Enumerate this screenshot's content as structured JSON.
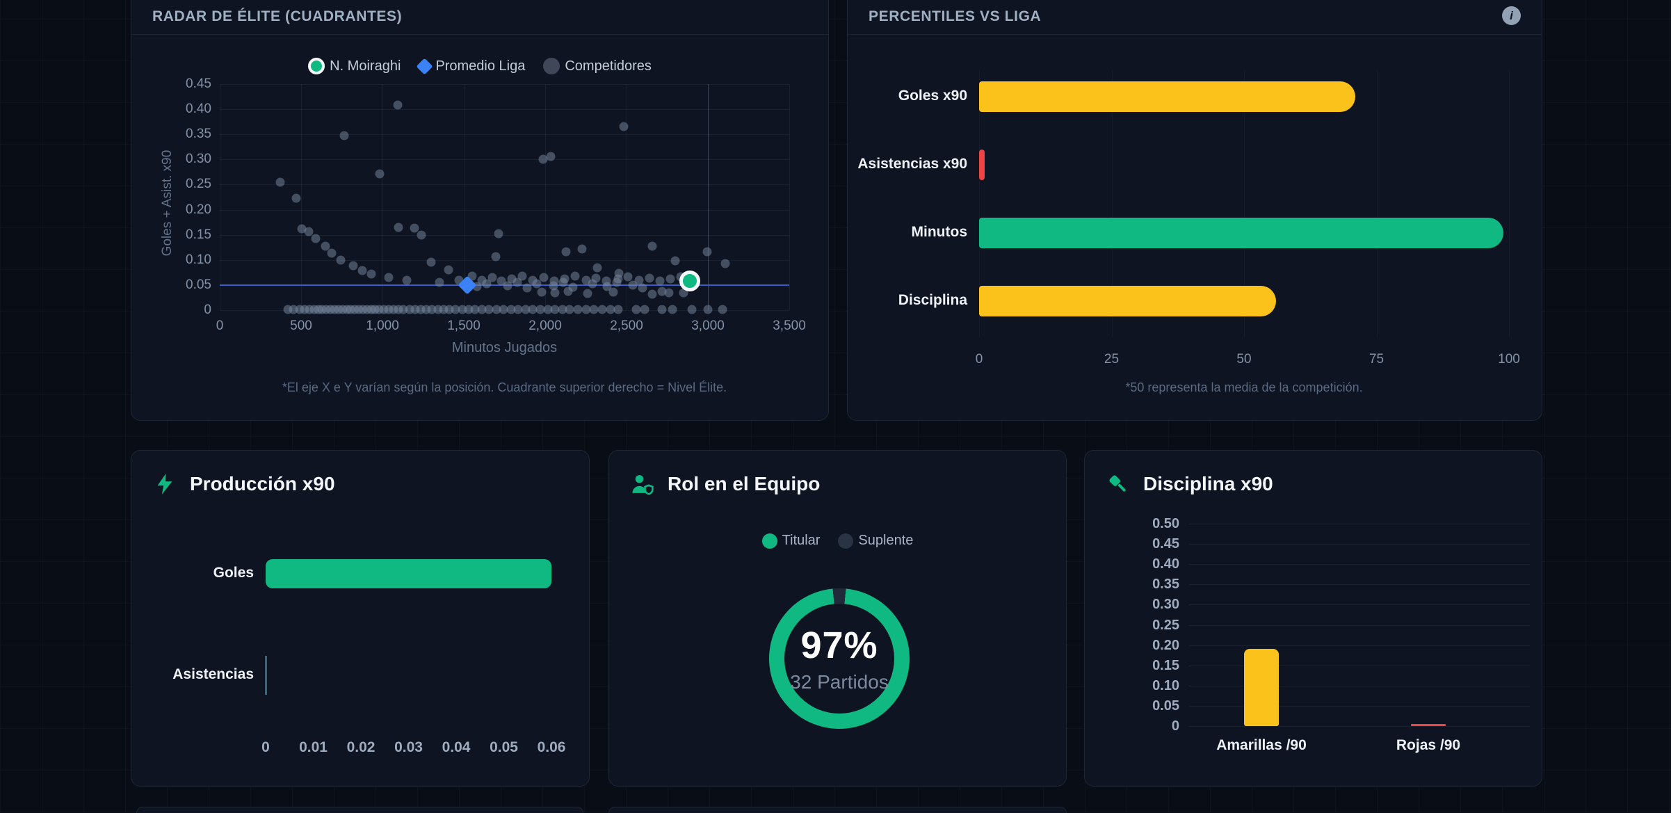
{
  "colors": {
    "page_bg": "#090d15",
    "panel_bg": "#0e1421",
    "panel_border": "#1d2737",
    "green": "#10b981",
    "yellow": "#fcc21c",
    "red": "#ef4444",
    "blue": "#3b82f6",
    "ref_line_blue": "#3a5ccc",
    "competitor_dot": "#7a89a2",
    "donut_track": "#212a3a"
  },
  "icons": {
    "info": "i",
    "bolt": "bolt-icon",
    "users": "users-shield-icon",
    "gavel": "gavel-icon"
  },
  "panels": {
    "radar": {
      "title": "RADAR DE ÉLITE (CUADRANTES)",
      "footnote": "*El eje X e Y varían según la posición. Cuadrante superior derecho = Nivel Élite."
    },
    "percentiles": {
      "title": "PERCENTILES VS LIGA",
      "footnote": "*50 representa la media de la competición."
    },
    "produccion": {
      "title": "Producción x90"
    },
    "rol": {
      "title": "Rol en el Equipo"
    },
    "disciplina": {
      "title": "Disciplina x90"
    }
  },
  "chart_data": [
    {
      "id": "radar",
      "type": "scatter",
      "title": "RADAR DE ÉLITE (CUADRANTES)",
      "xlabel": "Minutos Jugados",
      "ylabel": "Goles + Asist. x90",
      "xlim": [
        0,
        3500
      ],
      "ylim": [
        0,
        0.45
      ],
      "xticks": [
        0,
        500,
        1000,
        1500,
        2000,
        2500,
        3000,
        3500
      ],
      "xtick_labels": [
        "0",
        "500",
        "1,000",
        "1,500",
        "2,000",
        "2,500",
        "3,000",
        "3,500"
      ],
      "yticks": [
        0,
        0.05,
        0.1,
        0.15,
        0.2,
        0.25,
        0.3,
        0.35,
        0.4,
        0.45
      ],
      "ytick_labels": [
        "0",
        "0.05",
        "0.10",
        "0.15",
        "0.20",
        "0.25",
        "0.30",
        "0.35",
        "0.40",
        "0.45"
      ],
      "grid": true,
      "ref_lines": {
        "horizontal_y": 0.05,
        "vertical_x": 3000
      },
      "legend_position": "top",
      "series": [
        {
          "name": "N. Moiraghi",
          "marker": "circle-ring",
          "color": "#10b981",
          "points": [
            [
              2890,
              0.058
            ]
          ]
        },
        {
          "name": "Promedio Liga",
          "marker": "diamond",
          "color": "#3b82f6",
          "points": [
            [
              1520,
              0.05
            ]
          ]
        },
        {
          "name": "Competidores",
          "marker": "circle",
          "color": "#7a89a2",
          "points": [
            [
              370,
              0.255
            ],
            [
              470,
              0.223
            ],
            [
              505,
              0.162
            ],
            [
              548,
              0.157
            ],
            [
              590,
              0.142
            ],
            [
              650,
              0.128
            ],
            [
              688,
              0.113
            ],
            [
              745,
              0.1
            ],
            [
              767,
              0.348
            ],
            [
              820,
              0.089
            ],
            [
              878,
              0.079
            ],
            [
              930,
              0.072
            ],
            [
              985,
              0.272
            ],
            [
              1040,
              0.065
            ],
            [
              1095,
              0.408
            ],
            [
              1100,
              0.165
            ],
            [
              1150,
              0.06
            ],
            [
              1198,
              0.163
            ],
            [
              1240,
              0.149
            ],
            [
              1298,
              0.096
            ],
            [
              1350,
              0.056
            ],
            [
              1405,
              0.081
            ],
            [
              1468,
              0.06
            ],
            [
              1580,
              0.047
            ],
            [
              1640,
              0.052
            ],
            [
              1697,
              0.106
            ],
            [
              1712,
              0.153
            ],
            [
              1770,
              0.048
            ],
            [
              1830,
              0.055
            ],
            [
              1890,
              0.045
            ],
            [
              1950,
              0.052
            ],
            [
              1988,
              0.301
            ],
            [
              2034,
              0.306
            ],
            [
              2050,
              0.048
            ],
            [
              2110,
              0.055
            ],
            [
              2128,
              0.117
            ],
            [
              2170,
              0.046
            ],
            [
              2228,
              0.122
            ],
            [
              2290,
              0.053
            ],
            [
              2320,
              0.085
            ],
            [
              2380,
              0.047
            ],
            [
              2440,
              0.055
            ],
            [
              2455,
              0.074
            ],
            [
              2484,
              0.365
            ],
            [
              2540,
              0.05
            ],
            [
              2600,
              0.045
            ],
            [
              2660,
              0.127
            ],
            [
              2720,
              0.038
            ],
            [
              2798,
              0.098
            ],
            [
              2850,
              0.035
            ],
            [
              2995,
              0.117
            ],
            [
              3105,
              0.093
            ],
            [
              1980,
              0.036
            ],
            [
              2060,
              0.034
            ],
            [
              2140,
              0.037
            ],
            [
              2260,
              0.033
            ],
            [
              2420,
              0.036
            ],
            [
              2660,
              0.032
            ],
            [
              2760,
              0.035
            ],
            [
              1550,
              0.068
            ],
            [
              1610,
              0.06
            ],
            [
              1675,
              0.065
            ],
            [
              1730,
              0.058
            ],
            [
              1795,
              0.062
            ],
            [
              1860,
              0.068
            ],
            [
              1925,
              0.06
            ],
            [
              1990,
              0.065
            ],
            [
              2055,
              0.058
            ],
            [
              2120,
              0.063
            ],
            [
              2185,
              0.068
            ],
            [
              2250,
              0.06
            ],
            [
              2310,
              0.064
            ],
            [
              2375,
              0.058
            ],
            [
              2450,
              0.062
            ],
            [
              2510,
              0.067
            ],
            [
              2575,
              0.06
            ],
            [
              2640,
              0.064
            ],
            [
              2705,
              0.058
            ],
            [
              2770,
              0.062
            ],
            [
              2835,
              0.066
            ],
            [
              420,
              0.002
            ],
            [
              455,
              0.002
            ],
            [
              490,
              0.002
            ],
            [
              520,
              0.002
            ],
            [
              550,
              0.002
            ],
            [
              580,
              0.002
            ],
            [
              605,
              0.002
            ],
            [
              630,
              0.002
            ],
            [
              655,
              0.002
            ],
            [
              680,
              0.002
            ],
            [
              705,
              0.002
            ],
            [
              730,
              0.002
            ],
            [
              755,
              0.002
            ],
            [
              780,
              0.002
            ],
            [
              805,
              0.002
            ],
            [
              830,
              0.002
            ],
            [
              855,
              0.002
            ],
            [
              880,
              0.002
            ],
            [
              905,
              0.002
            ],
            [
              930,
              0.002
            ],
            [
              955,
              0.002
            ],
            [
              980,
              0.002
            ],
            [
              1010,
              0.002
            ],
            [
              1040,
              0.002
            ],
            [
              1070,
              0.002
            ],
            [
              1100,
              0.002
            ],
            [
              1130,
              0.002
            ],
            [
              1165,
              0.002
            ],
            [
              1200,
              0.002
            ],
            [
              1235,
              0.002
            ],
            [
              1270,
              0.002
            ],
            [
              1305,
              0.002
            ],
            [
              1340,
              0.002
            ],
            [
              1375,
              0.002
            ],
            [
              1410,
              0.002
            ],
            [
              1450,
              0.002
            ],
            [
              1490,
              0.002
            ],
            [
              1530,
              0.002
            ],
            [
              1570,
              0.002
            ],
            [
              1610,
              0.002
            ],
            [
              1655,
              0.002
            ],
            [
              1700,
              0.002
            ],
            [
              1745,
              0.002
            ],
            [
              1790,
              0.002
            ],
            [
              1835,
              0.002
            ],
            [
              1880,
              0.002
            ],
            [
              1925,
              0.002
            ],
            [
              1970,
              0.002
            ],
            [
              2015,
              0.002
            ],
            [
              2060,
              0.002
            ],
            [
              2105,
              0.002
            ],
            [
              2150,
              0.002
            ],
            [
              2200,
              0.002
            ],
            [
              2250,
              0.002
            ],
            [
              2300,
              0.002
            ],
            [
              2350,
              0.002
            ],
            [
              2400,
              0.002
            ],
            [
              2450,
              0.002
            ],
            [
              2560,
              0.002
            ],
            [
              2610,
              0.002
            ],
            [
              2720,
              0.002
            ],
            [
              2780,
              0.002
            ],
            [
              2900,
              0.002
            ],
            [
              3000,
              0.002
            ],
            [
              3090,
              0.002
            ]
          ]
        }
      ]
    },
    {
      "id": "percentiles",
      "type": "bar",
      "orientation": "horizontal",
      "title": "PERCENTILES VS LIGA",
      "categories": [
        "Goles x90",
        "Asistencias x90",
        "Minutos",
        "Disciplina"
      ],
      "values": [
        71,
        1,
        99,
        56
      ],
      "bar_colors": [
        "#fcc21c",
        "#ef4444",
        "#10b981",
        "#fcc21c"
      ],
      "xlim": [
        0,
        100
      ],
      "xticks": [
        0,
        25,
        50,
        75,
        100
      ],
      "xtick_labels": [
        "0",
        "25",
        "50",
        "75",
        "100"
      ],
      "grid": true
    },
    {
      "id": "produccion",
      "type": "bar",
      "orientation": "horizontal",
      "title": "Producción x90",
      "categories": [
        "Goles",
        "Asistencias"
      ],
      "values": [
        0.06,
        0
      ],
      "bar_colors": [
        "#10b981",
        "#2c6b7c"
      ],
      "xlim": [
        0,
        0.06
      ],
      "xticks": [
        0,
        0.01,
        0.02,
        0.03,
        0.04,
        0.05,
        0.06
      ],
      "xtick_labels": [
        "0",
        "0.01",
        "0.02",
        "0.03",
        "0.04",
        "0.05",
        "0.06"
      ]
    },
    {
      "id": "rol",
      "type": "pie",
      "title": "Rol en el Equipo",
      "labels": [
        "Titular",
        "Suplente"
      ],
      "values": [
        97,
        3
      ],
      "slice_colors": [
        "#10b981",
        "#212a3a"
      ],
      "center_label": "97%",
      "center_sub": "32 Partidos",
      "legend_position": "top"
    },
    {
      "id": "disciplina",
      "type": "bar",
      "orientation": "vertical",
      "title": "Disciplina x90",
      "categories": [
        "Amarillas /90",
        "Rojas /90"
      ],
      "values": [
        0.19,
        0.003
      ],
      "bar_colors": [
        "#fcc21c",
        "#ef4444"
      ],
      "ylim": [
        0,
        0.5
      ],
      "yticks": [
        0,
        0.05,
        0.1,
        0.15,
        0.2,
        0.25,
        0.3,
        0.35,
        0.4,
        0.45,
        0.5
      ],
      "ytick_labels": [
        "0",
        "0.05",
        "0.10",
        "0.15",
        "0.20",
        "0.25",
        "0.30",
        "0.35",
        "0.40",
        "0.45",
        "0.50"
      ],
      "grid": true
    }
  ]
}
